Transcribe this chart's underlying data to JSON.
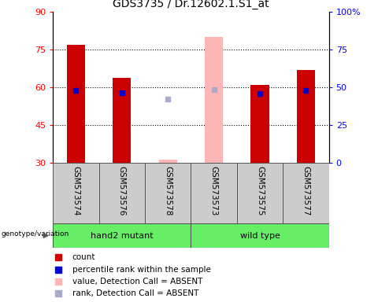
{
  "title": "GDS3735 / Dr.12602.1.S1_at",
  "samples": [
    "GSM573574",
    "GSM573576",
    "GSM573578",
    "GSM573573",
    "GSM573575",
    "GSM573577"
  ],
  "detection": [
    "P",
    "P",
    "A",
    "A",
    "P",
    "P"
  ],
  "values": [
    77.0,
    64.0,
    31.5,
    80.0,
    61.0,
    67.0
  ],
  "ranks": [
    48.0,
    46.5,
    42.5,
    48.5,
    46.0,
    48.0
  ],
  "bar_color_present": "#CC0000",
  "bar_color_absent": "#FFB6B6",
  "rank_color_present": "#0000CC",
  "rank_color_absent": "#AAAACC",
  "ylim_left": [
    30,
    90
  ],
  "ylim_right": [
    0,
    100
  ],
  "yticks_left": [
    30,
    45,
    60,
    75,
    90
  ],
  "yticks_right": [
    0,
    25,
    50,
    75,
    100
  ],
  "bar_width": 0.4,
  "rank_marker_size": 5,
  "bar_base": 30,
  "group1_label": "hand2 mutant",
  "group2_label": "wild type",
  "group_color": "#66EE66",
  "sample_box_color": "#CCCCCC",
  "legend_items": [
    {
      "color": "#CC0000",
      "marker": "s",
      "label": "count"
    },
    {
      "color": "#0000CC",
      "marker": "s",
      "label": "percentile rank within the sample"
    },
    {
      "color": "#FFB6B6",
      "marker": "s",
      "label": "value, Detection Call = ABSENT"
    },
    {
      "color": "#AAAACC",
      "marker": "s",
      "label": "rank, Detection Call = ABSENT"
    }
  ]
}
